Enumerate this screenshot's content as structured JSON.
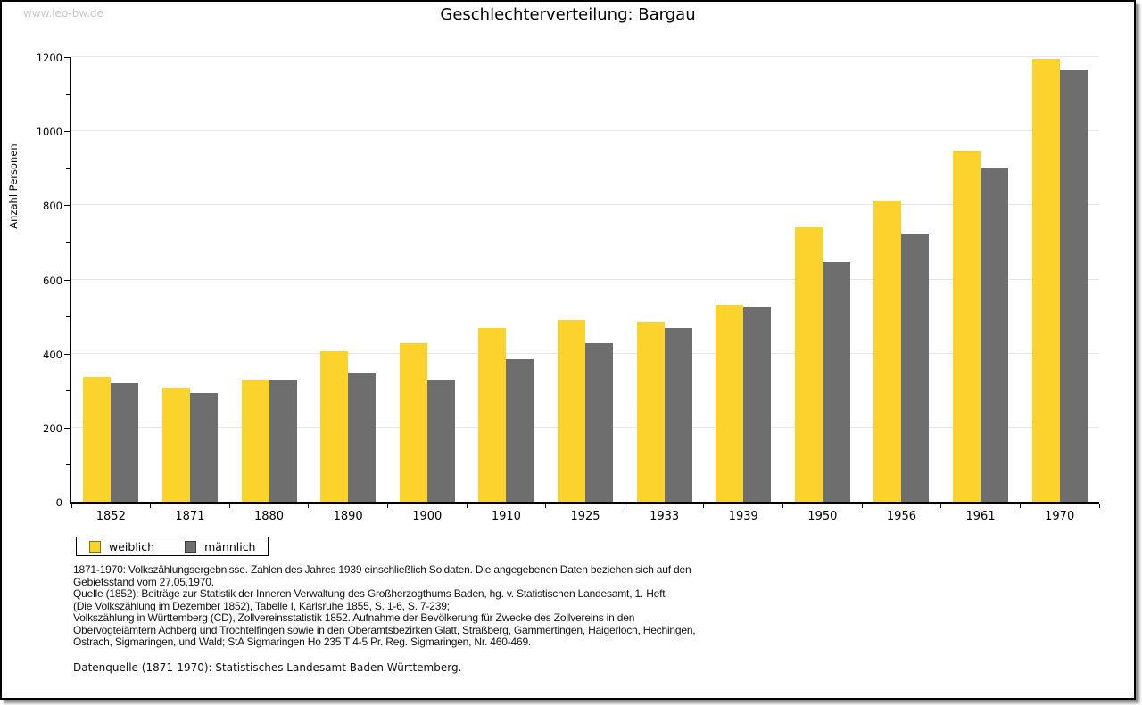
{
  "watermark": "www.leo-bw.de",
  "chart_data": {
    "type": "bar",
    "title": "Geschlechterverteilung: Bargau",
    "ylabel": "Anzahl Personen",
    "xlabel": "",
    "ylim": [
      0,
      1200
    ],
    "ytick_major_step": 200,
    "ytick_minor_step": 100,
    "grid": true,
    "legend_position": "bottom-left",
    "categories": [
      "1852",
      "1871",
      "1880",
      "1890",
      "1900",
      "1910",
      "1925",
      "1933",
      "1939",
      "1950",
      "1956",
      "1961",
      "1970"
    ],
    "series": [
      {
        "name": "weiblich",
        "color": "#fcd32d",
        "swatch_border": "#8a7300",
        "values": [
          337,
          308,
          330,
          406,
          427,
          468,
          490,
          486,
          531,
          740,
          814,
          947,
          1195
        ]
      },
      {
        "name": "männlich",
        "color": "#6e6e6e",
        "swatch_border": "#3d3d3d",
        "values": [
          320,
          293,
          330,
          346,
          330,
          385,
          429,
          469,
          524,
          646,
          721,
          903,
          1166
        ]
      }
    ]
  },
  "colors": {
    "gridline": "#e7e7e7",
    "axis": "#000000",
    "page_border": "#000000",
    "shadow": "#8c8c8c",
    "watermark_text": "#c9c9c9"
  },
  "footnote_lines": [
    "1871-1970: Volkszählungsergebnisse. Zahlen des Jahres 1939 einschließlich Soldaten. Die angegebenen Daten beziehen sich auf den",
    "Gebietsstand vom 27.05.1970.",
    "Quelle (1852): Beiträge zur Statistik der Inneren Verwaltung des Großherzogthums Baden, hg. v. Statistischen Landesamt, 1. Heft",
    "(Die Volkszählung im Dezember 1852), Tabelle I, Karlsruhe 1855, S. 1-6, S. 7-239;",
    "Volkszählung in Württemberg (CD), Zollvereinsstatistik 1852. Aufnahme der Bevölkerung für Zwecke des Zollvereins in den",
    "Obervogteiämtern Achberg und Trochtelfingen sowie in den Oberamtsbezirken Glatt, Straßberg, Gammertingen, Haigerloch, Hechingen,",
    "Ostrach, Sigmaringen, und Wald; StA Sigmaringen Ho 235 T 4-5 Pr. Reg. Sigmaringen, Nr. 460-469."
  ],
  "datasource": "Datenquelle (1871-1970): Statistisches Landesamt Baden-Württemberg."
}
